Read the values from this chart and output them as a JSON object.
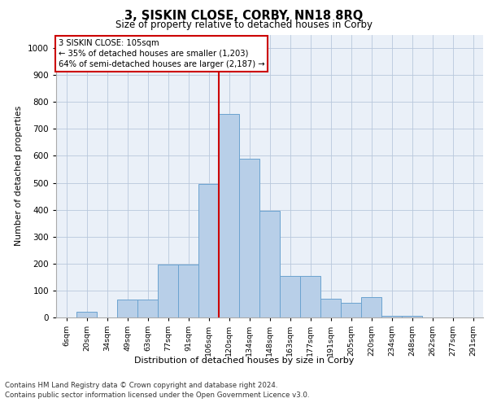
{
  "title": "3, SISKIN CLOSE, CORBY, NN18 8RQ",
  "subtitle": "Size of property relative to detached houses in Corby",
  "xlabel": "Distribution of detached houses by size in Corby",
  "ylabel": "Number of detached properties",
  "categories": [
    "6sqm",
    "20sqm",
    "34sqm",
    "49sqm",
    "63sqm",
    "77sqm",
    "91sqm",
    "106sqm",
    "120sqm",
    "134sqm",
    "148sqm",
    "163sqm",
    "177sqm",
    "191sqm",
    "205sqm",
    "220sqm",
    "234sqm",
    "248sqm",
    "262sqm",
    "277sqm",
    "291sqm"
  ],
  "values": [
    0,
    20,
    0,
    65,
    65,
    195,
    195,
    495,
    755,
    590,
    395,
    155,
    155,
    70,
    55,
    75,
    5,
    5,
    0,
    0,
    0
  ],
  "bar_color": "#b8cfe8",
  "bar_edge_color": "#6ba3d0",
  "vline_color": "#cc0000",
  "vline_x": 7.5,
  "annotation_line1": "3 SISKIN CLOSE: 105sqm",
  "annotation_line2": "← 35% of detached houses are smaller (1,203)",
  "annotation_line3": "64% of semi-detached houses are larger (2,187) →",
  "annotation_box_color": "#ffffff",
  "annotation_box_edge": "#cc0000",
  "ylim": [
    0,
    1050
  ],
  "yticks": [
    0,
    100,
    200,
    300,
    400,
    500,
    600,
    700,
    800,
    900,
    1000
  ],
  "bg_color": "#eaf0f8",
  "footer1": "Contains HM Land Registry data © Crown copyright and database right 2024.",
  "footer2": "Contains public sector information licensed under the Open Government Licence v3.0."
}
